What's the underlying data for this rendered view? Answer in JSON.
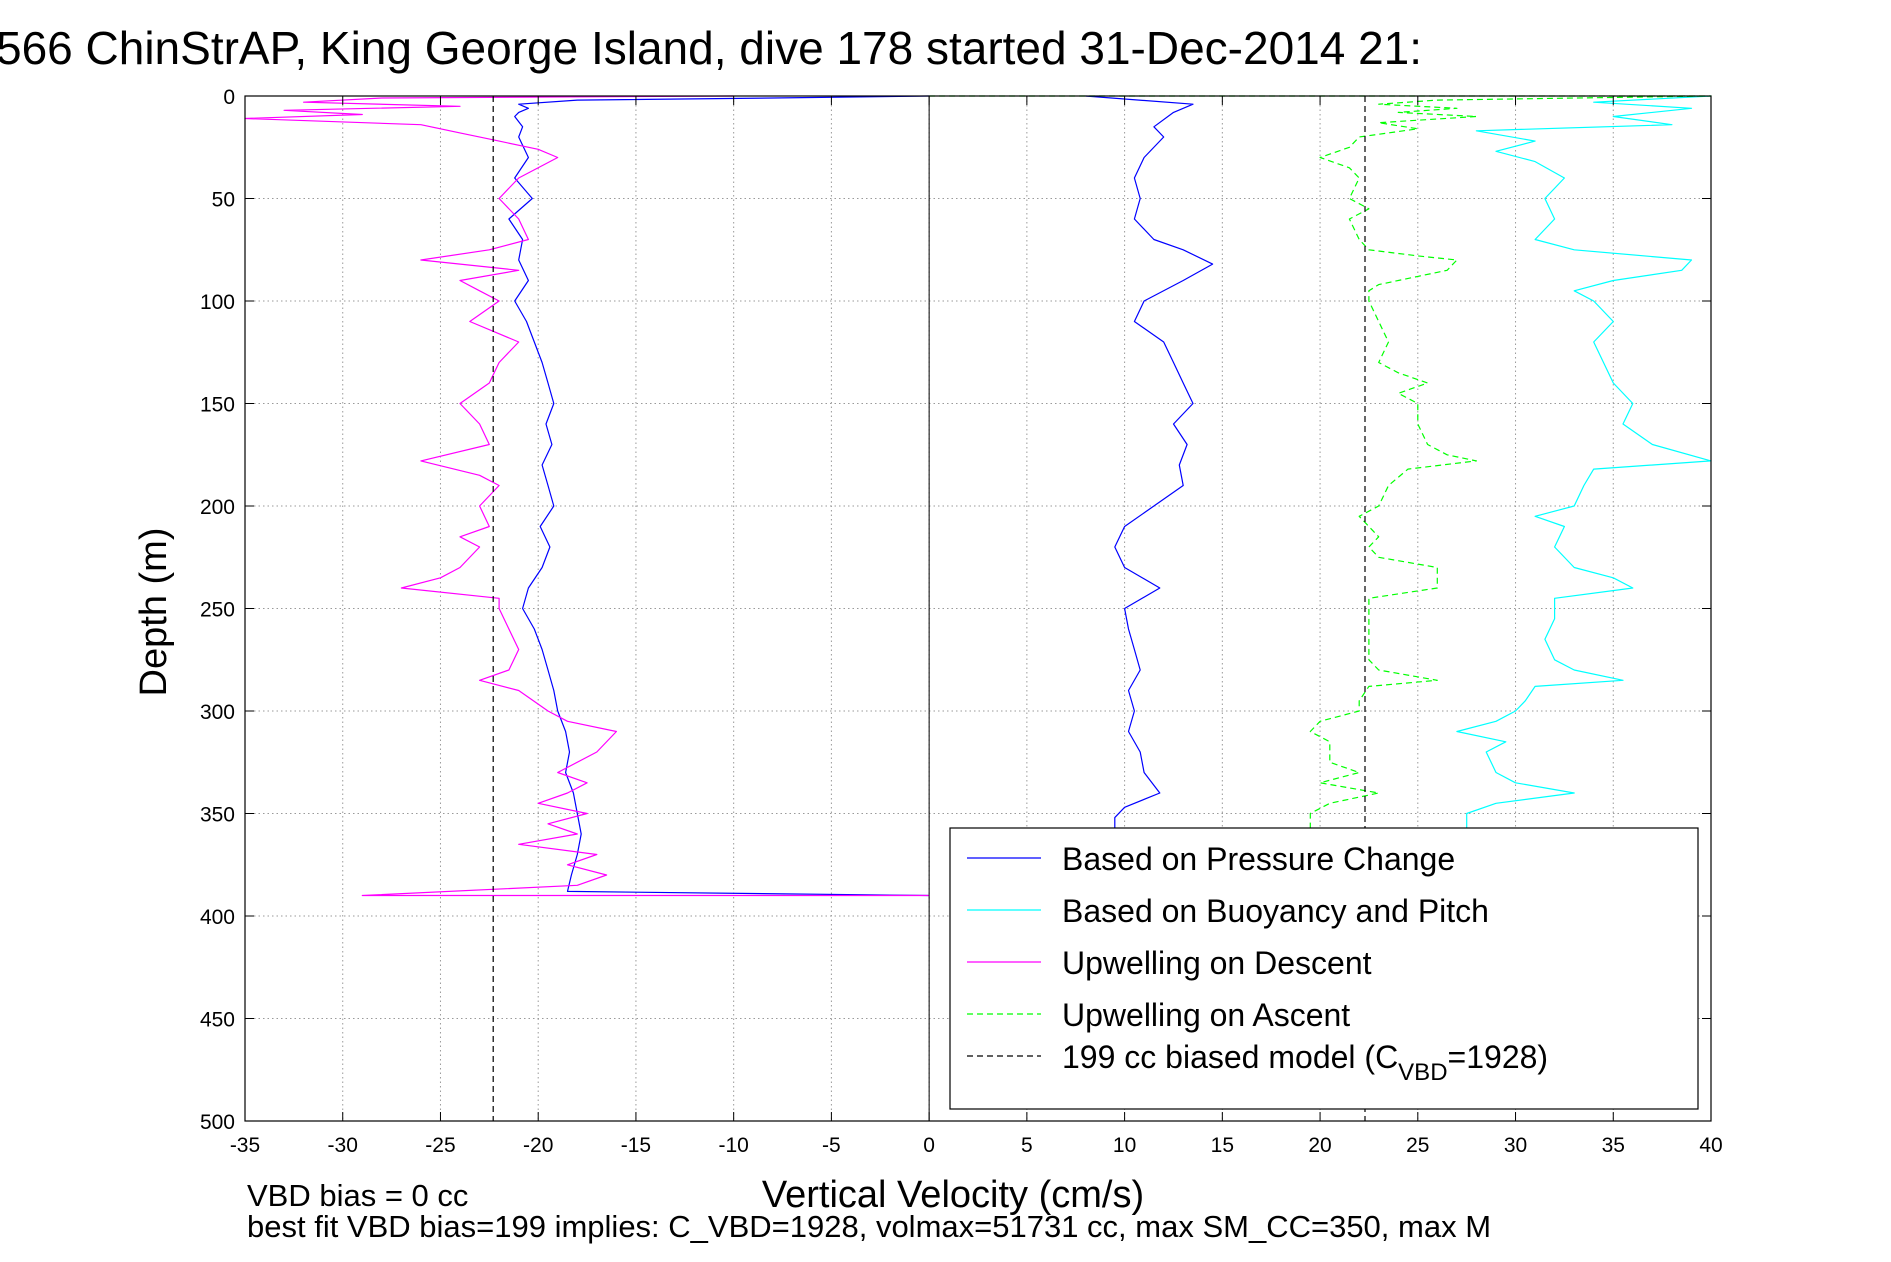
{
  "chart_data": {
    "type": "line",
    "title": "566 ChinStrAP, King George Island, dive 178 started 31-Dec-2014 21:",
    "xlabel": "Vertical Velocity (cm/s)",
    "ylabel": "Depth (m)",
    "xlim": [
      -35,
      40
    ],
    "ylim": [
      0,
      500
    ],
    "y_reversed": true,
    "grid": true,
    "x_ticks": [
      "-35",
      "-30",
      "-25",
      "-20",
      "-15",
      "-10",
      "-5",
      "0",
      "5",
      "10",
      "15",
      "20",
      "25",
      "30",
      "35",
      "40"
    ],
    "y_ticks": [
      "0",
      "50",
      "100",
      "150",
      "200",
      "250",
      "300",
      "350",
      "400",
      "450",
      "500"
    ],
    "legend_position": "bottom-right",
    "series": [
      {
        "name": "Based on Pressure Change",
        "color": "#0000ff",
        "style": "solid",
        "points": [
          [
            0,
            0
          ],
          [
            -8,
            1
          ],
          [
            -18,
            2
          ],
          [
            -21,
            4
          ],
          [
            -20.5,
            6
          ],
          [
            -21,
            8
          ],
          [
            -21.2,
            10
          ],
          [
            -20.8,
            15
          ],
          [
            -21,
            20
          ],
          [
            -20.5,
            30
          ],
          [
            -21.2,
            40
          ],
          [
            -20.3,
            50
          ],
          [
            -21.5,
            60
          ],
          [
            -20.8,
            70
          ],
          [
            -21,
            80
          ],
          [
            -20.5,
            90
          ],
          [
            -21.2,
            100
          ],
          [
            -20.6,
            110
          ],
          [
            -20.2,
            120
          ],
          [
            -19.8,
            130
          ],
          [
            -19.5,
            140
          ],
          [
            -19.2,
            150
          ],
          [
            -19.6,
            160
          ],
          [
            -19.3,
            170
          ],
          [
            -19.8,
            180
          ],
          [
            -19.5,
            190
          ],
          [
            -19.2,
            200
          ],
          [
            -19.9,
            210
          ],
          [
            -19.4,
            220
          ],
          [
            -19.8,
            230
          ],
          [
            -20.5,
            240
          ],
          [
            -20.8,
            250
          ],
          [
            -20.2,
            260
          ],
          [
            -19.8,
            270
          ],
          [
            -19.5,
            280
          ],
          [
            -19.2,
            290
          ],
          [
            -19,
            300
          ],
          [
            -18.6,
            310
          ],
          [
            -18.4,
            320
          ],
          [
            -18.6,
            330
          ],
          [
            -18.2,
            340
          ],
          [
            -18,
            350
          ],
          [
            -17.8,
            360
          ],
          [
            -18,
            370
          ],
          [
            -18.3,
            380
          ],
          [
            -18.5,
            388
          ],
          [
            0,
            390
          ]
        ]
      },
      {
        "name": "Based on Pressure Change",
        "color": "#0000ff",
        "style": "solid",
        "points": [
          [
            8,
            0
          ],
          [
            13.5,
            4
          ],
          [
            12.5,
            8
          ],
          [
            11.5,
            15
          ],
          [
            12,
            20
          ],
          [
            11,
            30
          ],
          [
            10.5,
            40
          ],
          [
            10.8,
            50
          ],
          [
            10.5,
            60
          ],
          [
            11.5,
            70
          ],
          [
            13,
            75
          ],
          [
            14.5,
            82
          ],
          [
            13,
            90
          ],
          [
            11,
            100
          ],
          [
            10.5,
            110
          ],
          [
            12,
            120
          ],
          [
            12.5,
            130
          ],
          [
            13,
            140
          ],
          [
            13.5,
            150
          ],
          [
            12.5,
            160
          ],
          [
            13.2,
            170
          ],
          [
            12.8,
            180
          ],
          [
            13,
            190
          ],
          [
            11.5,
            200
          ],
          [
            10,
            210
          ],
          [
            9.5,
            220
          ],
          [
            10,
            230
          ],
          [
            11.8,
            240
          ],
          [
            10,
            250
          ],
          [
            10.2,
            260
          ],
          [
            10.5,
            270
          ],
          [
            10.8,
            280
          ],
          [
            10.2,
            290
          ],
          [
            10.5,
            300
          ],
          [
            10.2,
            310
          ],
          [
            10.8,
            320
          ],
          [
            11,
            330
          ],
          [
            11.8,
            340
          ],
          [
            10,
            347
          ],
          [
            9.5,
            352
          ],
          [
            9.5,
            360
          ]
        ]
      },
      {
        "name": "Based on Buoyancy and Pitch",
        "color": "#00ffff",
        "style": "solid",
        "points": [
          [
            40,
            0
          ],
          [
            34,
            3
          ],
          [
            39,
            6
          ],
          [
            35,
            10
          ],
          [
            38,
            14
          ],
          [
            28,
            17
          ],
          [
            31,
            22
          ],
          [
            29,
            27
          ],
          [
            31,
            32
          ],
          [
            32.5,
            40
          ],
          [
            31.5,
            50
          ],
          [
            32,
            60
          ],
          [
            31,
            70
          ],
          [
            33,
            75
          ],
          [
            39,
            80
          ],
          [
            38.5,
            85
          ],
          [
            35,
            90
          ],
          [
            33,
            95
          ],
          [
            34,
            100
          ],
          [
            35,
            110
          ],
          [
            34,
            120
          ],
          [
            34.5,
            130
          ],
          [
            35,
            140
          ],
          [
            36,
            150
          ],
          [
            35.5,
            160
          ],
          [
            37,
            170
          ],
          [
            40,
            178
          ],
          [
            34,
            182
          ],
          [
            33.5,
            190
          ],
          [
            33,
            200
          ],
          [
            31,
            205
          ],
          [
            32.5,
            210
          ],
          [
            32,
            220
          ],
          [
            33,
            230
          ],
          [
            35,
            235
          ],
          [
            36,
            240
          ],
          [
            32,
            245
          ],
          [
            32,
            255
          ],
          [
            31.5,
            265
          ],
          [
            32,
            275
          ],
          [
            33,
            280
          ],
          [
            35.5,
            285
          ],
          [
            31,
            288
          ],
          [
            30.5,
            295
          ],
          [
            30,
            300
          ],
          [
            29,
            305
          ],
          [
            27,
            310
          ],
          [
            29.5,
            315
          ],
          [
            28.5,
            320
          ],
          [
            29,
            330
          ],
          [
            30,
            335
          ],
          [
            33,
            340
          ],
          [
            29,
            345
          ],
          [
            27.5,
            350
          ],
          [
            27.5,
            360
          ]
        ]
      },
      {
        "name": "Upwelling on Descent",
        "color": "#ff00ff",
        "style": "solid",
        "points": [
          [
            -10,
            0
          ],
          [
            -28,
            1
          ],
          [
            -32,
            3
          ],
          [
            -24,
            5
          ],
          [
            -33,
            7
          ],
          [
            -29,
            9
          ],
          [
            -35,
            11
          ],
          [
            -26,
            14
          ],
          [
            -24,
            18
          ],
          [
            -22,
            22
          ],
          [
            -20,
            26
          ],
          [
            -19,
            30
          ],
          [
            -21,
            40
          ],
          [
            -22,
            50
          ],
          [
            -21,
            60
          ],
          [
            -20.5,
            70
          ],
          [
            -22.5,
            75
          ],
          [
            -26,
            80
          ],
          [
            -21,
            85
          ],
          [
            -24,
            90
          ],
          [
            -23,
            95
          ],
          [
            -22,
            100
          ],
          [
            -23.5,
            110
          ],
          [
            -21,
            120
          ],
          [
            -22,
            130
          ],
          [
            -22.5,
            140
          ],
          [
            -24,
            150
          ],
          [
            -23,
            160
          ],
          [
            -22.5,
            170
          ],
          [
            -26,
            178
          ],
          [
            -23,
            185
          ],
          [
            -22,
            190
          ],
          [
            -23,
            200
          ],
          [
            -22.5,
            210
          ],
          [
            -24,
            215
          ],
          [
            -23,
            220
          ],
          [
            -24,
            230
          ],
          [
            -25,
            235
          ],
          [
            -27,
            240
          ],
          [
            -22,
            245
          ],
          [
            -22,
            250
          ],
          [
            -21.5,
            260
          ],
          [
            -21,
            270
          ],
          [
            -21.5,
            280
          ],
          [
            -23,
            285
          ],
          [
            -21,
            290
          ],
          [
            -19.5,
            300
          ],
          [
            -18.5,
            305
          ],
          [
            -16,
            310
          ],
          [
            -17,
            320
          ],
          [
            -19,
            330
          ],
          [
            -17.5,
            335
          ],
          [
            -18.5,
            340
          ],
          [
            -20,
            345
          ],
          [
            -17.5,
            350
          ],
          [
            -19.5,
            355
          ],
          [
            -18,
            360
          ],
          [
            -21,
            365
          ],
          [
            -17,
            370
          ],
          [
            -18.5,
            375
          ],
          [
            -16.5,
            380
          ],
          [
            -18,
            385
          ],
          [
            -29,
            390
          ],
          [
            -12,
            390
          ],
          [
            0,
            390
          ]
        ]
      },
      {
        "name": "Upwelling on Ascent",
        "color": "#00ff00",
        "style": "dashed",
        "points": [
          [
            0,
            0
          ],
          [
            20,
            0
          ],
          [
            40,
            0
          ],
          [
            26,
            2
          ],
          [
            23,
            4
          ],
          [
            27,
            6
          ],
          [
            24,
            8
          ],
          [
            28,
            10
          ],
          [
            23,
            13
          ],
          [
            25,
            16
          ],
          [
            22,
            20
          ],
          [
            21.5,
            25
          ],
          [
            20,
            30
          ],
          [
            21.5,
            35
          ],
          [
            22,
            40
          ],
          [
            21.5,
            50
          ],
          [
            22.5,
            55
          ],
          [
            21.5,
            60
          ],
          [
            22,
            70
          ],
          [
            22.5,
            75
          ],
          [
            25,
            78
          ],
          [
            27,
            80
          ],
          [
            26.5,
            85
          ],
          [
            25,
            88
          ],
          [
            23,
            92
          ],
          [
            22.5,
            95
          ],
          [
            22.5,
            100
          ],
          [
            23,
            110
          ],
          [
            23.5,
            120
          ],
          [
            23,
            130
          ],
          [
            24,
            135
          ],
          [
            25.5,
            140
          ],
          [
            24,
            145
          ],
          [
            25,
            150
          ],
          [
            25,
            160
          ],
          [
            25.5,
            170
          ],
          [
            26.5,
            175
          ],
          [
            28,
            178
          ],
          [
            24.5,
            182
          ],
          [
            23.5,
            190
          ],
          [
            23,
            200
          ],
          [
            22,
            205
          ],
          [
            22.5,
            210
          ],
          [
            23,
            215
          ],
          [
            22.5,
            220
          ],
          [
            23,
            225
          ],
          [
            26,
            230
          ],
          [
            26,
            240
          ],
          [
            22.5,
            245
          ],
          [
            22.5,
            255
          ],
          [
            22.5,
            265
          ],
          [
            22.5,
            275
          ],
          [
            23,
            280
          ],
          [
            26,
            285
          ],
          [
            22.5,
            288
          ],
          [
            22,
            295
          ],
          [
            22,
            300
          ],
          [
            20,
            305
          ],
          [
            19.5,
            310
          ],
          [
            20.5,
            315
          ],
          [
            20.5,
            325
          ],
          [
            22,
            330
          ],
          [
            20,
            335
          ],
          [
            23,
            340
          ],
          [
            20.5,
            345
          ],
          [
            19.5,
            350
          ],
          [
            19.5,
            360
          ]
        ]
      },
      {
        "name": "199 cc biased model (C_VBD=1928)",
        "color": "#000000",
        "style": "dashed",
        "points": [
          [
            -22.3,
            0
          ],
          [
            -22.3,
            500
          ]
        ]
      },
      {
        "name": "",
        "color": "#000000",
        "style": "dashed",
        "points": [
          [
            22.3,
            0
          ],
          [
            22.3,
            500
          ]
        ]
      }
    ],
    "legend": [
      {
        "label": "Based on Pressure Change",
        "color": "#0000ff",
        "style": "solid"
      },
      {
        "label": "Based on Buoyancy and Pitch",
        "color": "#00ffff",
        "style": "solid"
      },
      {
        "label": "Upwelling on Descent",
        "color": "#ff00ff",
        "style": "solid"
      },
      {
        "label": "Upwelling on Ascent",
        "color": "#00ff00",
        "style": "dashed"
      },
      {
        "label": "199 cc biased model (C",
        "sub": "VBD",
        "suffix": "=1928)",
        "color": "#000000",
        "style": "dashed"
      }
    ],
    "notes": [
      "VBD bias = 0 cc",
      "best fit VBD bias=199 implies: C_VBD=1928, volmax=51731 cc, max SM_CC=350, max M"
    ]
  }
}
